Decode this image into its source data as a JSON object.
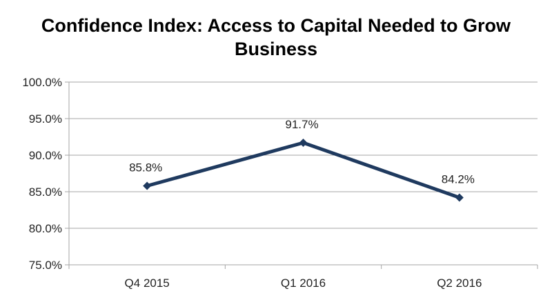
{
  "chart_data": {
    "type": "line",
    "title": "Confidence Index: Access to Capital Needed to Grow Business",
    "categories": [
      "Q4 2015",
      "Q1 2016",
      "Q2 2016"
    ],
    "values": [
      85.8,
      91.7,
      84.2
    ],
    "data_labels": [
      "85.8%",
      "91.7%",
      "84.2%"
    ],
    "ylim": [
      75,
      100
    ],
    "yticks": [
      "75.0%",
      "80.0%",
      "85.0%",
      "90.0%",
      "95.0%",
      "100.0%"
    ],
    "xlabel": "",
    "ylabel": "",
    "grid": true,
    "legend": "none",
    "line_color": "#1f3a5f"
  }
}
